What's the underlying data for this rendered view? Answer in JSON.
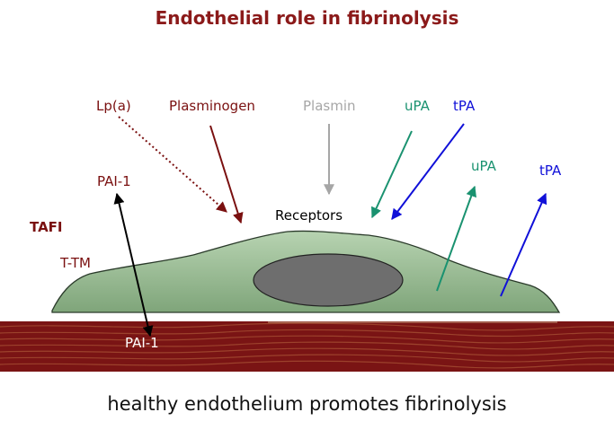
{
  "title": "Endothelial role in fibrinolysis",
  "caption": "healthy endothelium promotes fibrinolysis",
  "labels": {
    "lpa": "Lp(a)",
    "plasminogen": "Plasminogen",
    "plasmin": "Plasmin",
    "upa_top": "uPA",
    "tpa_top": "tPA",
    "upa_right": "uPA",
    "tpa_right": "tPA",
    "pai1_top": "PAI-1",
    "receptors": "Receptors",
    "tafi": "TAFI",
    "ttm": "T-TM",
    "pai1_bottom": "PAI-1"
  },
  "colors": {
    "title": "#8b1a1a",
    "dark_red": "#7a1010",
    "gray": "#a6a6a6",
    "teal": "#1a9270",
    "blue": "#1010d8",
    "cell": "#8fb28a",
    "nucleus": "#6b6b6b",
    "tissue": "#7a1414"
  }
}
